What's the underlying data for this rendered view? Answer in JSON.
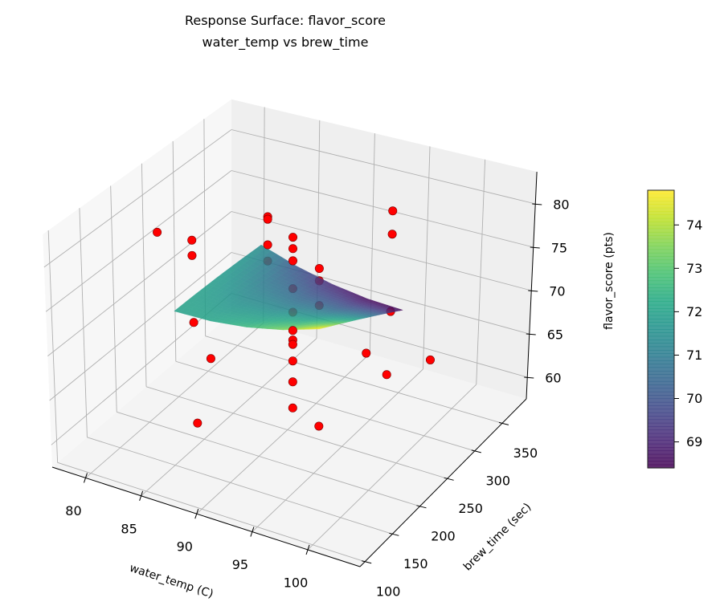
{
  "chart_data": {
    "type": "surface",
    "title": "Response Surface: flavor_score",
    "subtitle": "water_temp vs brew_time",
    "xlabel": "water_temp (C)",
    "ylabel": "brew_time (sec)",
    "zlabel": "flavor_score (pts)",
    "xlim": [
      77,
      104.7
    ],
    "ylim": [
      91,
      394
    ],
    "zlim": [
      57.5,
      83.7
    ],
    "xticks": [
      80,
      85,
      90,
      95,
      100
    ],
    "yticks": [
      100,
      150,
      200,
      250,
      300,
      350
    ],
    "zticks": [
      60,
      65,
      70,
      75,
      80
    ],
    "grid": true,
    "colormap": "viridis",
    "colorbar": {
      "range": [
        68.4,
        74.8
      ],
      "ticks": [
        69,
        70,
        71,
        72,
        73,
        74
      ]
    },
    "point_color": "#ff0000",
    "surface": {
      "x": [
        83,
        86.25,
        89.5,
        92.75,
        96
      ],
      "y": [
        190,
        226.25,
        262.5,
        298.75,
        335
      ],
      "z": [
        [
          72.0,
          72.1,
          72.6,
          73.5,
          74.8
        ],
        [
          71.97,
          71.7,
          71.83,
          72.36,
          73.29
        ],
        [
          71.88,
          71.24,
          71.0,
          71.16,
          71.73
        ],
        [
          71.72,
          70.72,
          70.11,
          69.9,
          70.1
        ],
        [
          71.5,
          70.13,
          69.15,
          68.58,
          68.4
        ]
      ]
    },
    "points": [
      {
        "x": 91,
        "y": 240,
        "z": 80.6
      },
      {
        "x": 91,
        "y": 240,
        "z": 79.3
      },
      {
        "x": 91,
        "y": 240,
        "z": 77.9
      },
      {
        "x": 91,
        "y": 240,
        "z": 74.7
      },
      {
        "x": 91,
        "y": 240,
        "z": 72.0
      },
      {
        "x": 91,
        "y": 240,
        "z": 69.9
      },
      {
        "x": 91,
        "y": 240,
        "z": 68.8
      },
      {
        "x": 91,
        "y": 240,
        "z": 68.3
      },
      {
        "x": 91,
        "y": 240,
        "z": 66.4
      },
      {
        "x": 91,
        "y": 240,
        "z": 64.0
      },
      {
        "x": 91,
        "y": 240,
        "z": 61.0
      },
      {
        "x": 85.5,
        "y": 300,
        "z": 77.7
      },
      {
        "x": 85.5,
        "y": 300,
        "z": 77.4
      },
      {
        "x": 85.5,
        "y": 300,
        "z": 74.4
      },
      {
        "x": 85.5,
        "y": 300,
        "z": 72.5
      },
      {
        "x": 80,
        "y": 275,
        "z": 74.4
      },
      {
        "x": 80,
        "y": 275,
        "z": 72.6
      },
      {
        "x": 80,
        "y": 219,
        "z": 78.4
      },
      {
        "x": 83,
        "y": 222,
        "z": 68.9
      },
      {
        "x": 85,
        "y": 213,
        "z": 66.0
      },
      {
        "x": 85,
        "y": 189,
        "z": 60.0
      },
      {
        "x": 95,
        "y": 209,
        "z": 80.2
      },
      {
        "x": 95,
        "y": 209,
        "z": 78.8
      },
      {
        "x": 95,
        "y": 209,
        "z": 76.0
      },
      {
        "x": 95,
        "y": 209,
        "z": 62.3
      },
      {
        "x": 95,
        "y": 333,
        "z": 79.7
      },
      {
        "x": 95,
        "y": 333,
        "z": 77.0
      },
      {
        "x": 95,
        "y": 333,
        "z": 68.0
      },
      {
        "x": 100,
        "y": 194,
        "z": 73.3
      },
      {
        "x": 102,
        "y": 191,
        "z": 71.8
      },
      {
        "x": 100,
        "y": 308,
        "z": 65.7
      }
    ]
  }
}
